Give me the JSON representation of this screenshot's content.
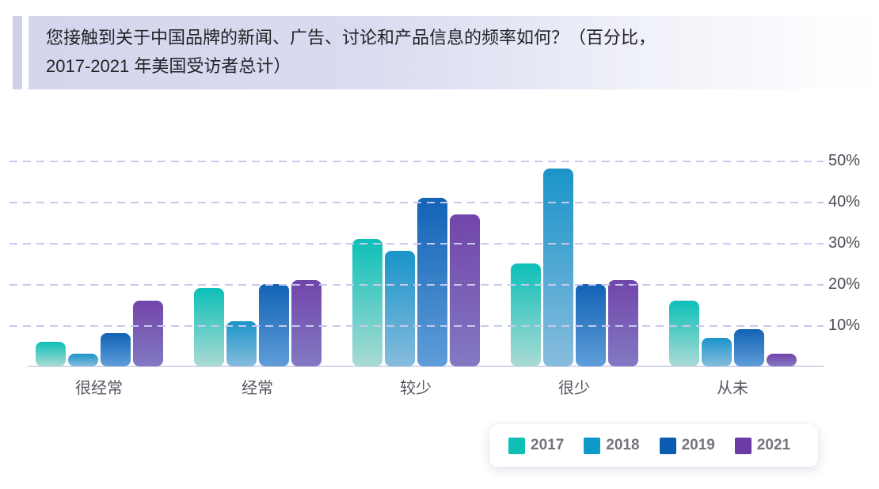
{
  "title": {
    "line1": "您接触到关于中国品牌的新闻、广告、讨论和产品信息的频率如何？（百分比，",
    "line2": "2017-2021 年美国受访者总计）"
  },
  "colors": {
    "title_block_bg": "#d4d6ed",
    "accent_stripe": "#ccd0ea",
    "gridline": "#c8c9ec",
    "axis_line": "#d6d6ec",
    "axis_text": "#4b4c55",
    "legend_text": "#74747e"
  },
  "chart_data": {
    "type": "bar",
    "title": "您接触到关于中国品牌的新闻、广告、讨论和产品信息的频率如何？（百分比，2017-2021 年美国受访者总计）",
    "categories": [
      "很经常",
      "经常",
      "较少",
      "很少",
      "从未"
    ],
    "series": [
      {
        "name": "2017",
        "color": "#0dbfb4",
        "gradient_top": "#0cc0b8",
        "gradient_bottom": "#abdad4",
        "values": [
          6,
          19,
          31,
          25,
          16
        ]
      },
      {
        "name": "2018",
        "color": "#0e9ac9",
        "gradient_top": "#1a94c9",
        "gradient_bottom": "#87bcdd",
        "values": [
          3,
          11,
          28,
          48,
          7
        ]
      },
      {
        "name": "2019",
        "color": "#0b5cb1",
        "gradient_top": "#1263b5",
        "gradient_bottom": "#5f9dd9",
        "values": [
          8,
          20,
          41,
          20,
          9
        ]
      },
      {
        "name": "2021",
        "color": "#6b3ca3",
        "gradient_top": "#7245a9",
        "gradient_bottom": "#8279c3",
        "values": [
          16,
          21,
          37,
          21,
          3
        ]
      }
    ],
    "xlabel": "",
    "ylabel": "",
    "y_ticks": [
      "10%",
      "20%",
      "30%",
      "40%",
      "50%"
    ],
    "ylim": [
      0,
      55
    ],
    "grid": "horizontal-dashed",
    "legend_position": "bottom-right",
    "unit": "%"
  },
  "legend": {
    "items": [
      "2017",
      "2018",
      "2019",
      "2021"
    ]
  }
}
